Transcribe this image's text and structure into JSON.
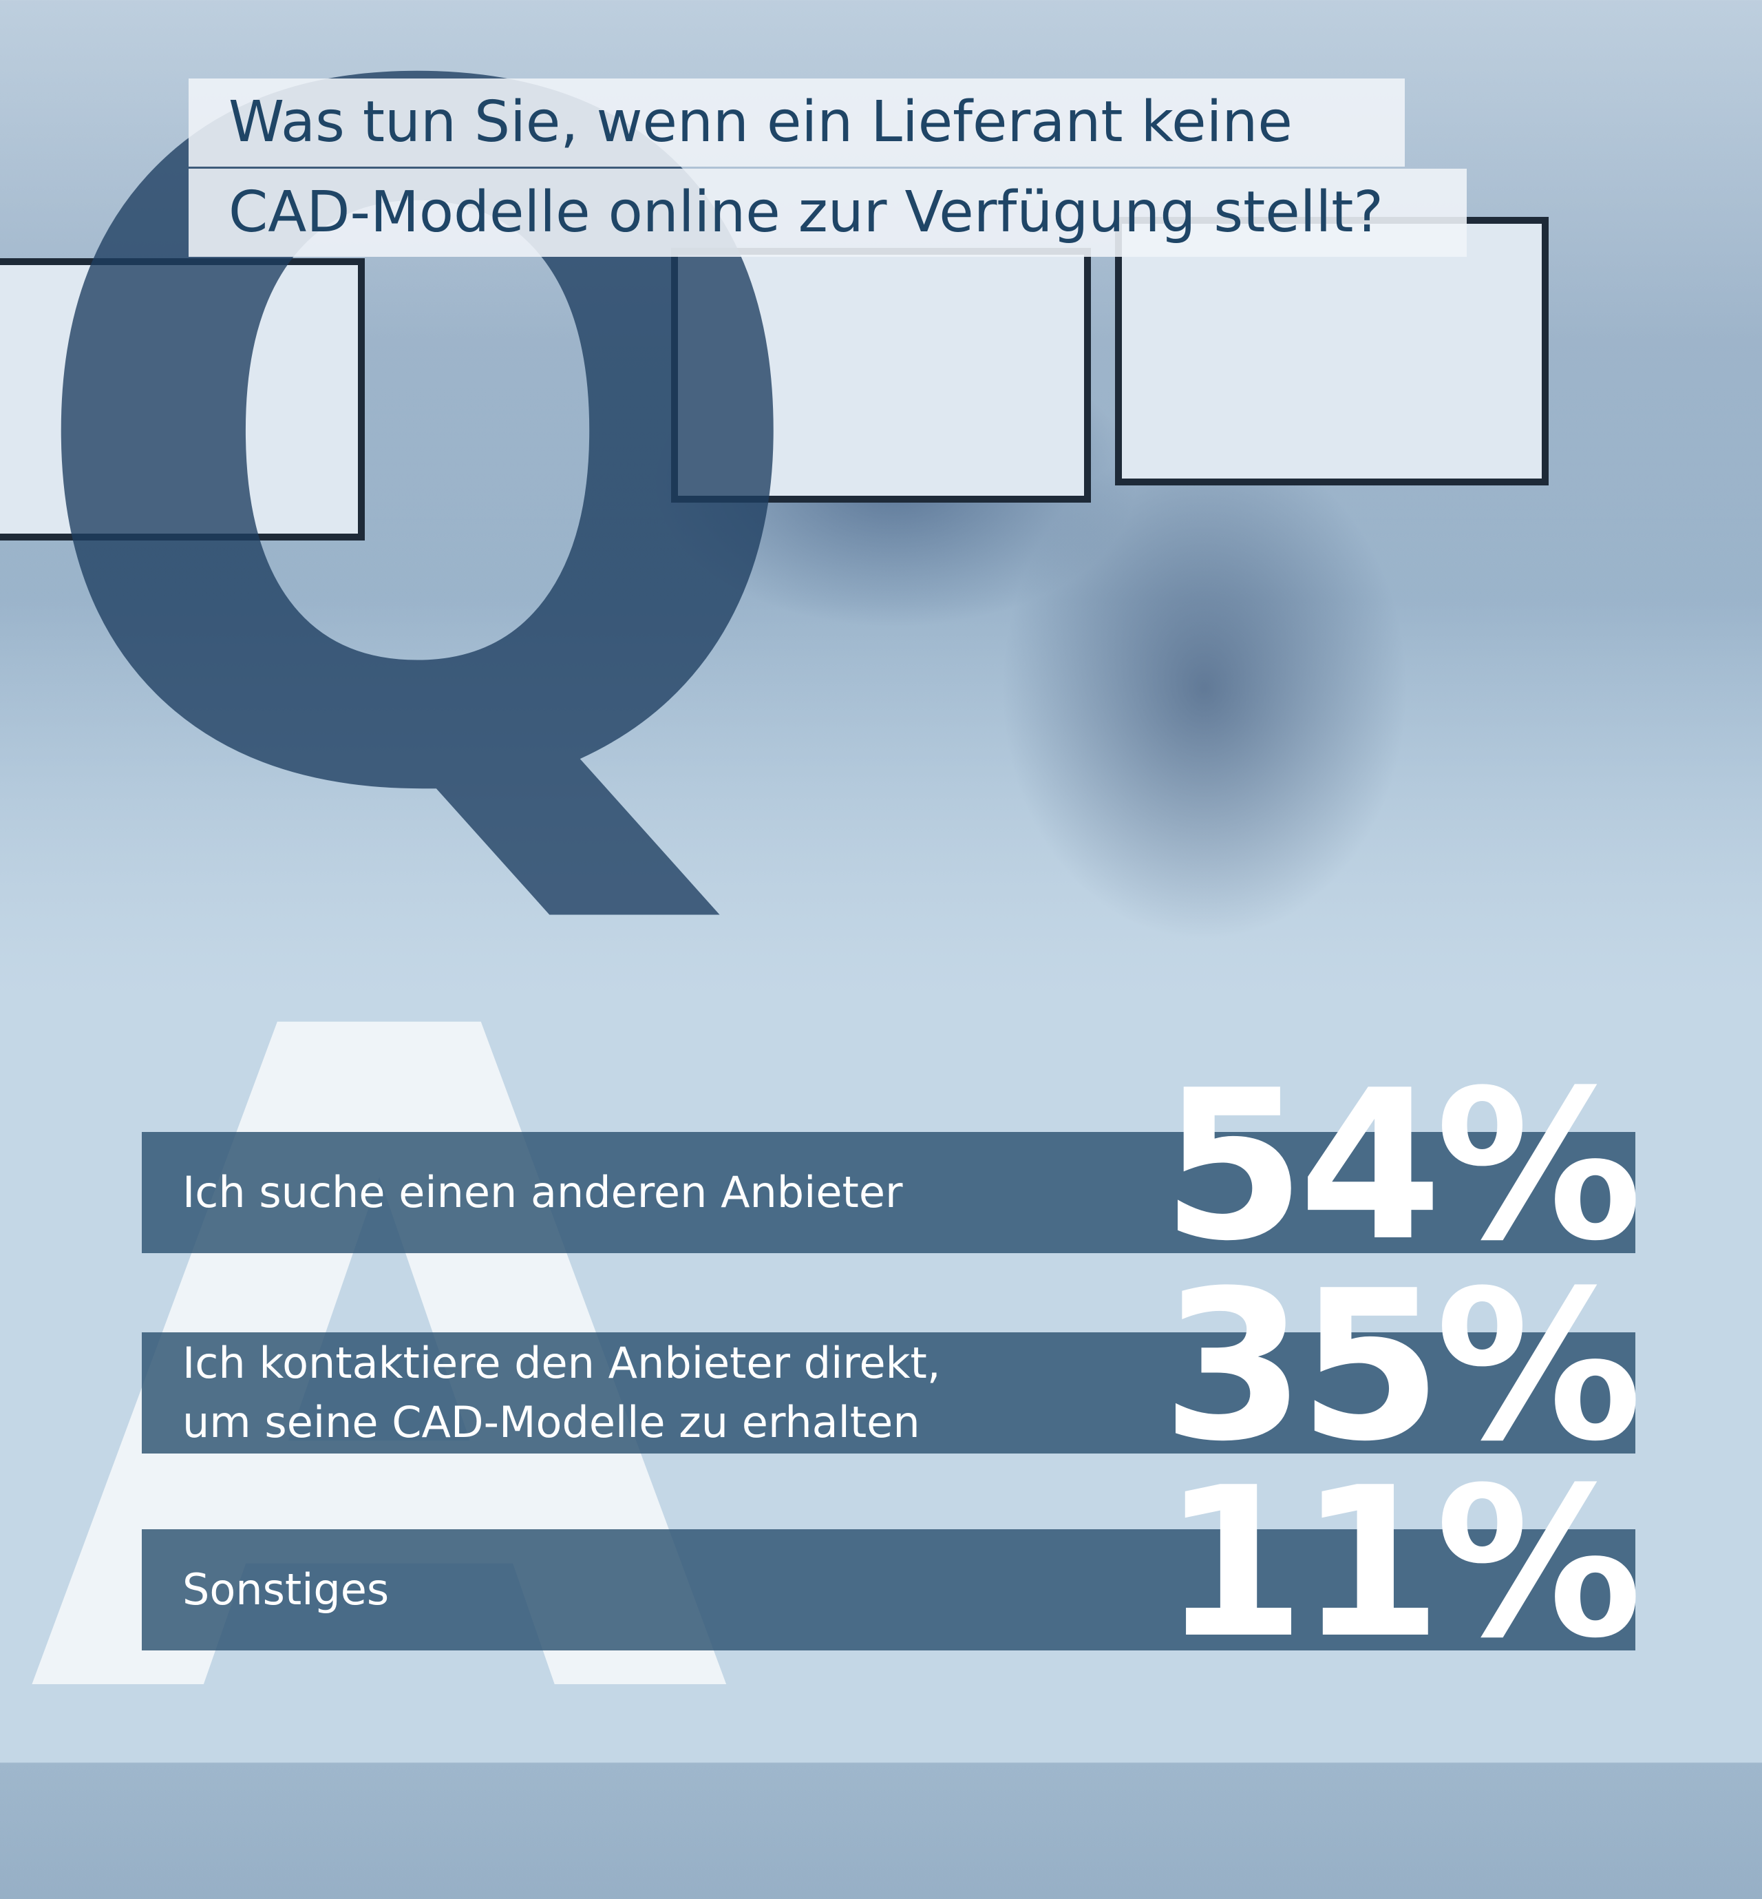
{
  "question": {
    "letter": "Q",
    "lines": [
      "Was tun Sie, wenn ein Lieferant keine",
      "CAD-Modelle online zur Verfügung stellt?"
    ]
  },
  "answers": {
    "letter": "A",
    "items": [
      {
        "lines": [
          "Ich suche einen anderen Anbieter"
        ],
        "percent": "54%"
      },
      {
        "lines": [
          "Ich kontaktiere den Anbieter  direkt,",
          "um seine CAD-Modelle  zu erhalten"
        ],
        "percent": "35%"
      },
      {
        "lines": [
          "Sonstiges"
        ],
        "percent": "11%"
      }
    ]
  }
}
